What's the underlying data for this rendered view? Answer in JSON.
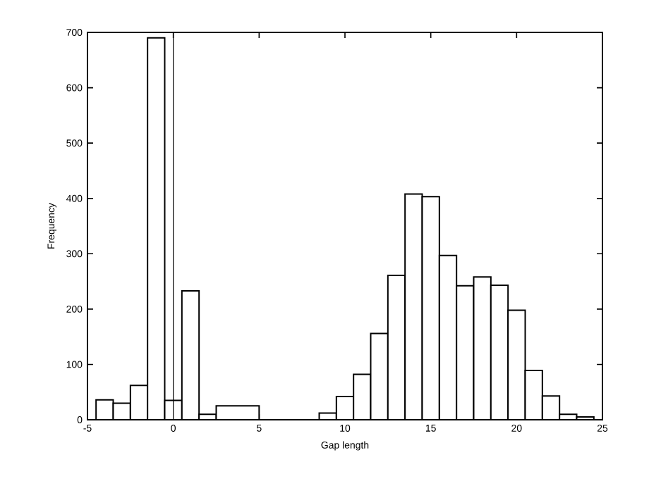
{
  "chart_data": {
    "type": "histogram",
    "xlabel": "Gap length",
    "ylabel": "Frequency",
    "bins": [
      -4.5,
      -3.5,
      -2.5,
      -1.5,
      -0.5,
      0.5,
      1.5,
      2.5,
      5,
      8.5,
      9.5,
      10.5,
      11.5,
      12.5,
      13.5,
      14.5,
      15.5,
      16.5,
      17.5,
      18.5,
      19.5,
      20.5,
      21.5,
      22.5,
      23.5,
      24.5
    ],
    "values": [
      36,
      30,
      62,
      690,
      35,
      233,
      10,
      25,
      0,
      12,
      42,
      82,
      156,
      261,
      408,
      403,
      297,
      242,
      258,
      243,
      198,
      89,
      43,
      10,
      5
    ],
    "color": "#ffffff",
    "xlim": [
      -5,
      25
    ],
    "ylim": [
      0,
      700
    ],
    "xticks": [
      -5,
      0,
      5,
      10,
      15,
      20,
      25
    ],
    "yticks": [
      0,
      100,
      200,
      300,
      400,
      500,
      600,
      700
    ],
    "ref_lines": [
      {
        "axis": "x",
        "value": 0,
        "color": "#000000"
      }
    ],
    "grid": false
  }
}
